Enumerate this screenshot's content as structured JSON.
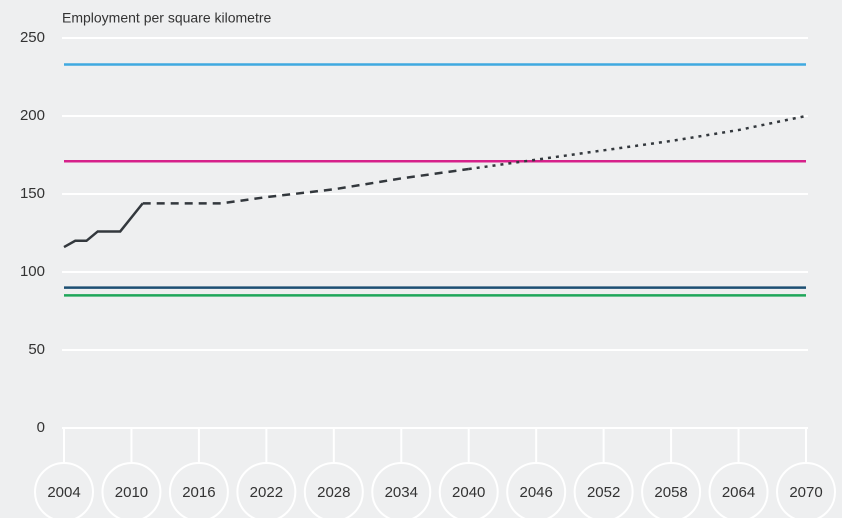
{
  "chart_data": {
    "type": "line",
    "title": "Employment per square kilometre",
    "xlim": [
      2004,
      2070
    ],
    "xticks": [
      2004,
      2010,
      2016,
      2022,
      2028,
      2034,
      2040,
      2046,
      2052,
      2058,
      2064,
      2070
    ],
    "ylim": [
      0,
      250
    ],
    "yticks": [
      0,
      50,
      100,
      150,
      200,
      250
    ],
    "grid": true,
    "series": [
      {
        "color": "#3fa9e0",
        "dash": "solid",
        "x": [
          2004,
          2070
        ],
        "values": [
          233,
          233
        ]
      },
      {
        "color": "#d6218a",
        "dash": "solid",
        "x": [
          2004,
          2070
        ],
        "values": [
          171,
          171
        ]
      },
      {
        "color": "#1d4f73",
        "dash": "solid",
        "x": [
          2004,
          2070
        ],
        "values": [
          90,
          90
        ]
      },
      {
        "color": "#1fa65a",
        "dash": "solid",
        "x": [
          2004,
          2070
        ],
        "values": [
          85,
          85
        ]
      },
      {
        "color": "#33383d",
        "dash": "solid",
        "x": [
          2004,
          2005,
          2006,
          2007,
          2009,
          2011
        ],
        "values": [
          116,
          120,
          120,
          126,
          126,
          144
        ]
      },
      {
        "color": "#33383d",
        "dash": "dashed",
        "x": [
          2011,
          2018,
          2022,
          2028,
          2034,
          2040
        ],
        "values": [
          144,
          144,
          148,
          153,
          160,
          166
        ]
      },
      {
        "color": "#33383d",
        "dash": "dotted",
        "x": [
          2040,
          2046,
          2052,
          2058,
          2064,
          2070
        ],
        "values": [
          166,
          172,
          178,
          184,
          191,
          200
        ]
      }
    ]
  }
}
